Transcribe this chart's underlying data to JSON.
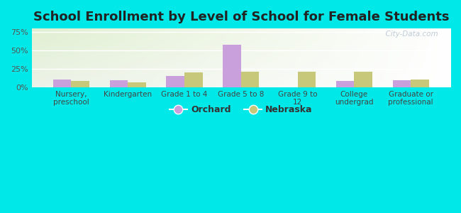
{
  "title": "School Enrollment by Level of School for Female Students",
  "categories": [
    "Nursery,\npreschool",
    "Kindergarten",
    "Grade 1 to 4",
    "Grade 5 to 8",
    "Grade 9 to\n12",
    "College\nundergrad",
    "Graduate or\nprofessional"
  ],
  "orchard_values": [
    10,
    9,
    15,
    58,
    0,
    8,
    9
  ],
  "nebraska_values": [
    8,
    6,
    20,
    21,
    21,
    21,
    10
  ],
  "orchard_color": "#c9a0dc",
  "nebraska_color": "#c8c87a",
  "ylim": [
    0,
    80
  ],
  "yticks": [
    0,
    25,
    50,
    75
  ],
  "ytick_labels": [
    "0%",
    "25%",
    "50%",
    "75%"
  ],
  "background_outer": "#00e8e8",
  "title_fontsize": 13,
  "axis_fontsize": 8,
  "legend_fontsize": 9,
  "watermark": "  City-Data.com"
}
